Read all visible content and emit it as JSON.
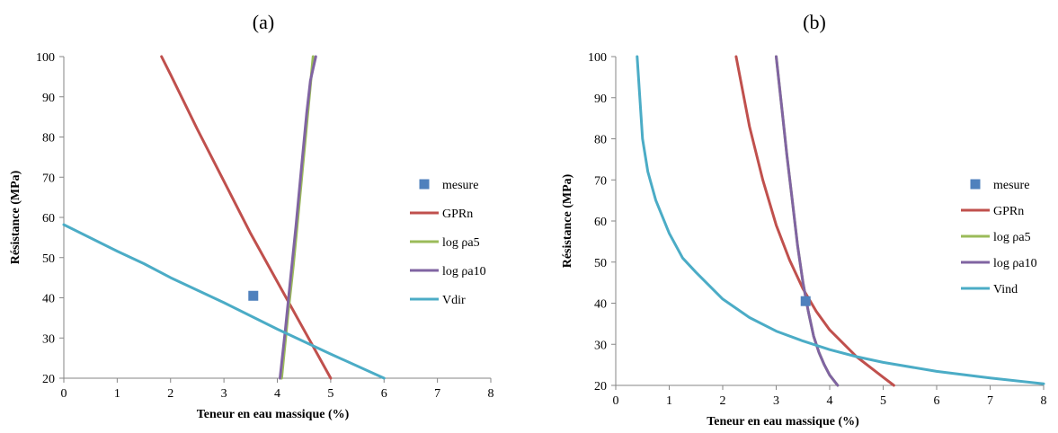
{
  "chart_data": [
    {
      "type": "line",
      "panel_label": "(a)",
      "xlabel": "Teneur en eau massique (%)",
      "ylabel": "Résistance (MPa)",
      "xlim": [
        0,
        8
      ],
      "ylim": [
        20,
        100
      ],
      "xticks": [
        0,
        1,
        2,
        3,
        4,
        5,
        6,
        7,
        8
      ],
      "yticks": [
        20,
        30,
        40,
        50,
        60,
        70,
        80,
        90,
        100
      ],
      "grid": false,
      "legend_position": "right",
      "measure": {
        "name": "mesure",
        "x": 3.55,
        "y": 40.5,
        "color": "#4f81bd"
      },
      "series": [
        {
          "name": "GPRn",
          "color": "#c0504d",
          "points": [
            [
              1.83,
              100
            ],
            [
              2.0,
              95.5
            ],
            [
              2.5,
              82
            ],
            [
              3.0,
              69
            ],
            [
              3.5,
              56
            ],
            [
              4.0,
              44
            ],
            [
              4.5,
              32
            ],
            [
              5.0,
              20
            ]
          ]
        },
        {
          "name": "log ρa5",
          "color": "#9bbb59",
          "points": [
            [
              4.08,
              20
            ],
            [
              4.2,
              36
            ],
            [
              4.3,
              48
            ],
            [
              4.4,
              62
            ],
            [
              4.5,
              76
            ],
            [
              4.6,
              90
            ],
            [
              4.67,
              100
            ]
          ]
        },
        {
          "name": "log ρa10",
          "color": "#8064a2",
          "points": [
            [
              4.05,
              20
            ],
            [
              4.15,
              32
            ],
            [
              4.25,
              45
            ],
            [
              4.35,
              58
            ],
            [
              4.45,
              72
            ],
            [
              4.55,
              86
            ],
            [
              4.62,
              94
            ],
            [
              4.72,
              100
            ]
          ]
        },
        {
          "name": "Vdir",
          "color": "#4bacc6",
          "points": [
            [
              0,
              58.2
            ],
            [
              1.0,
              51.6
            ],
            [
              1.5,
              48.5
            ],
            [
              2.0,
              45
            ],
            [
              3.0,
              38.8
            ],
            [
              4.0,
              32.2
            ],
            [
              5.0,
              26
            ],
            [
              6.0,
              20
            ]
          ]
        }
      ]
    },
    {
      "type": "line",
      "panel_label": "(b)",
      "xlabel": "Teneur en eau massique (%)",
      "ylabel": "Résistance (MPa)",
      "xlim": [
        0,
        8
      ],
      "ylim": [
        20,
        100
      ],
      "xticks": [
        0,
        1,
        2,
        3,
        4,
        5,
        6,
        7,
        8
      ],
      "yticks": [
        20,
        30,
        40,
        50,
        60,
        70,
        80,
        90,
        100
      ],
      "grid": false,
      "legend_position": "right",
      "measure": {
        "name": "mesure",
        "x": 3.55,
        "y": 40.5,
        "color": "#4f81bd"
      },
      "series": [
        {
          "name": "GPRn",
          "color": "#c0504d",
          "points": [
            [
              2.25,
              100
            ],
            [
              2.5,
              83
            ],
            [
              2.75,
              70
            ],
            [
              3.0,
              59
            ],
            [
              3.25,
              50.5
            ],
            [
              3.5,
              43.5
            ],
            [
              3.75,
              38
            ],
            [
              4.0,
              33.5
            ],
            [
              4.5,
              27
            ],
            [
              4.75,
              24.5
            ],
            [
              5.0,
              22
            ],
            [
              5.2,
              20
            ]
          ]
        },
        {
          "name": "log ρa5",
          "color": "#9bbb59",
          "points": [
            [
              3.0,
              100
            ],
            [
              3.1,
              88
            ],
            [
              3.2,
              76
            ],
            [
              3.3,
              65
            ],
            [
              3.4,
              54
            ],
            [
              3.5,
              45
            ],
            [
              3.6,
              38
            ],
            [
              3.7,
              32
            ],
            [
              3.8,
              28
            ],
            [
              3.9,
              25
            ],
            [
              4.0,
              22.5
            ],
            [
              4.15,
              20
            ]
          ]
        },
        {
          "name": "log ρa10",
          "color": "#8064a2",
          "points": [
            [
              3.0,
              100
            ],
            [
              3.1,
              88
            ],
            [
              3.2,
              76
            ],
            [
              3.3,
              65
            ],
            [
              3.4,
              54
            ],
            [
              3.5,
              45
            ],
            [
              3.6,
              38
            ],
            [
              3.7,
              32
            ],
            [
              3.8,
              28
            ],
            [
              3.9,
              25
            ],
            [
              4.0,
              22.5
            ],
            [
              4.15,
              20
            ]
          ]
        },
        {
          "name": "Vind",
          "color": "#4bacc6",
          "points": [
            [
              0.4,
              100
            ],
            [
              0.45,
              90
            ],
            [
              0.5,
              80
            ],
            [
              0.6,
              72
            ],
            [
              0.75,
              65
            ],
            [
              1.0,
              57
            ],
            [
              1.25,
              51
            ],
            [
              1.5,
              47.5
            ],
            [
              2.0,
              41
            ],
            [
              2.5,
              36.5
            ],
            [
              3.0,
              33.2
            ],
            [
              3.5,
              30.8
            ],
            [
              4.0,
              28.7
            ],
            [
              4.5,
              27
            ],
            [
              5.0,
              25.6
            ],
            [
              6.0,
              23.4
            ],
            [
              7.0,
              21.8
            ],
            [
              8.0,
              20.4
            ]
          ]
        }
      ]
    }
  ]
}
